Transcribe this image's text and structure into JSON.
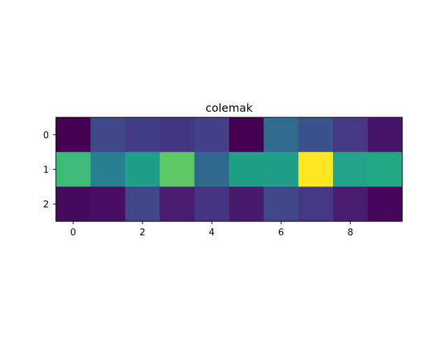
{
  "figure": {
    "background": "#ffffff"
  },
  "chart_data": {
    "type": "heatmap",
    "title": "colemak",
    "xlabel": "",
    "ylabel": "",
    "colormap": "viridis",
    "grid": false,
    "x_ticks": [
      "0",
      "2",
      "4",
      "6",
      "8"
    ],
    "y_ticks": [
      "0",
      "1",
      "2"
    ],
    "x_tick_values": [
      0,
      2,
      4,
      6,
      8
    ],
    "y_tick_values": [
      0,
      1,
      2
    ],
    "xlim": [
      -0.5,
      9.5
    ],
    "ylim": [
      2.5,
      -0.5
    ],
    "rows": 3,
    "cols": 10,
    "cell_colors": [
      [
        "#440154",
        "#3f4889",
        "#423e85",
        "#453681",
        "#424086",
        "#440154",
        "#2f6b8e",
        "#3b528b",
        "#453781",
        "#481467"
      ],
      [
        "#3bbb75",
        "#27808e",
        "#1f9e89",
        "#5ec962",
        "#31688e",
        "#1f9f88",
        "#1f9e89",
        "#fde725",
        "#20a386",
        "#22a884"
      ],
      [
        "#460a5d",
        "#470d60",
        "#3f4788",
        "#481c6e",
        "#463480",
        "#481b6d",
        "#3f4788",
        "#453781",
        "#481d6f",
        "#450559"
      ]
    ]
  }
}
